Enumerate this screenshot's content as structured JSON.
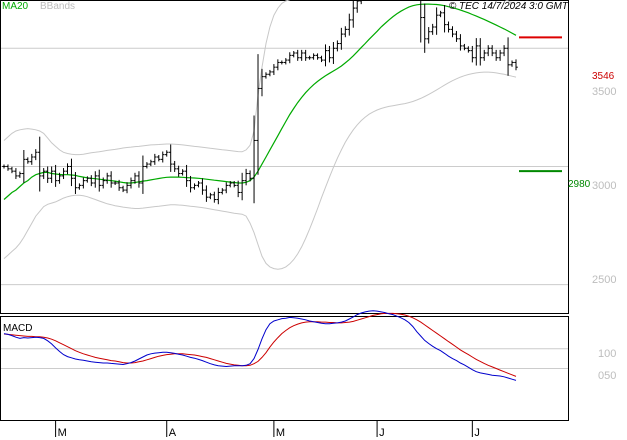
{
  "header": {
    "indicator_ma": "MA20",
    "indicator_bb": "BBands",
    "copyright_symbol": "©",
    "source": "TEC 14/7/2024 3:0 GMT"
  },
  "colors": {
    "price": "#000000",
    "ma20": "#00aa00",
    "bbands": "#c8c8c8",
    "macd": "#0000cc",
    "signal": "#cc0000",
    "resistance": "#dd0000",
    "support": "#008800",
    "grid": "#cccccc",
    "axis_text": "#bdbdbd"
  },
  "main_panel": {
    "y_axis_ticks": [
      "3500",
      "3000",
      "2500"
    ],
    "resistance_label": "3546",
    "support_label": "2980"
  },
  "macd_panel": {
    "title": "MACD",
    "y_axis_ticks": [
      "100",
      "050"
    ]
  },
  "x_axis": {
    "labels": [
      "M",
      "A",
      "M",
      "J",
      "J"
    ]
  },
  "chart_data": {
    "type": "line",
    "price_ylim": [
      2380,
      3700
    ],
    "macd_ylim": [
      -80,
      180
    ],
    "yticks": [
      3500,
      3000,
      2500
    ],
    "macd_yticks": [
      100,
      50
    ],
    "resistance": 3546,
    "support": 2980,
    "month_ticks": [
      {
        "label": "M",
        "index": 13
      },
      {
        "label": "A",
        "index": 41
      },
      {
        "label": "M",
        "index": 68
      },
      {
        "label": "J",
        "index": 94
      },
      {
        "label": "J",
        "index": 118
      }
    ],
    "close": [
      3000,
      2990,
      2980,
      2960,
      2970,
      3030,
      3020,
      3040,
      3060,
      2960,
      2980,
      2950,
      2980,
      2940,
      2960,
      2980,
      3000,
      2950,
      2910,
      2920,
      2940,
      2950,
      2930,
      2960,
      2920,
      2940,
      2960,
      2930,
      2930,
      2910,
      2900,
      2920,
      2940,
      2960,
      2930,
      3000,
      3010,
      3020,
      3040,
      3030,
      3050,
      3060,
      3010,
      2990,
      2970,
      2980,
      2940,
      2910,
      2920,
      2930,
      2900,
      2870,
      2880,
      2860,
      2890,
      2900,
      2920,
      2930,
      2920,
      2890,
      2940,
      2970,
      2950,
      3110,
      3330,
      3380,
      3390,
      3400,
      3420,
      3440,
      3440,
      3450,
      3470,
      3480,
      3460,
      3480,
      3460,
      3460,
      3470,
      3460,
      3450,
      3490,
      3460,
      3500,
      3520,
      3560,
      3580,
      3620,
      3670,
      3700,
      3720,
      3740,
      3740,
      3770,
      3790,
      3840,
      3820,
      3840,
      3850,
      3860,
      3870,
      3840,
      3830,
      3840,
      3790,
      3630,
      3540,
      3570,
      3590,
      3640,
      3650,
      3600,
      3580,
      3560,
      3540,
      3510,
      3500,
      3490,
      3460,
      3510,
      3460,
      3480,
      3500,
      3480,
      3460,
      3480,
      3500,
      3430,
      3440,
      3420
    ],
    "ma20": [
      2860,
      2875,
      2890,
      2900,
      2915,
      2930,
      2940,
      2955,
      2965,
      2970,
      2975,
      2975,
      2970,
      2968,
      2966,
      2965,
      2965,
      2964,
      2962,
      2958,
      2955,
      2952,
      2950,
      2948,
      2946,
      2944,
      2942,
      2940,
      2938,
      2935,
      2932,
      2930,
      2930,
      2932,
      2935,
      2938,
      2940,
      2943,
      2946,
      2949,
      2952,
      2954,
      2955,
      2955,
      2955,
      2954,
      2953,
      2952,
      2951,
      2950,
      2948,
      2946,
      2944,
      2942,
      2940,
      2938,
      2936,
      2934,
      2932,
      2930,
      2930,
      2933,
      2940,
      2955,
      2980,
      3010,
      3040,
      3070,
      3100,
      3130,
      3160,
      3190,
      3220,
      3245,
      3270,
      3292,
      3312,
      3330,
      3346,
      3360,
      3372,
      3384,
      3394,
      3404,
      3414,
      3425,
      3438,
      3452,
      3468,
      3485,
      3503,
      3520,
      3538,
      3555,
      3572,
      3590,
      3605,
      3620,
      3634,
      3646,
      3657,
      3666,
      3674,
      3680,
      3684,
      3686,
      3687,
      3687,
      3686,
      3685,
      3683,
      3680,
      3676,
      3672,
      3667,
      3662,
      3656,
      3650,
      3643,
      3636,
      3629,
      3622,
      3614,
      3606,
      3598,
      3590,
      3582,
      3573,
      3564,
      3555
    ],
    "bb_upper": [
      3110,
      3125,
      3140,
      3150,
      3155,
      3158,
      3160,
      3158,
      3155,
      3150,
      3140,
      3120,
      3100,
      3085,
      3070,
      3060,
      3055,
      3052,
      3050,
      3050,
      3052,
      3055,
      3058,
      3060,
      3062,
      3065,
      3068,
      3070,
      3072,
      3075,
      3078,
      3080,
      3082,
      3084,
      3085,
      3087,
      3089,
      3091,
      3092,
      3093,
      3094,
      3095,
      3095,
      3094,
      3093,
      3091,
      3089,
      3087,
      3085,
      3083,
      3081,
      3079,
      3077,
      3075,
      3073,
      3071,
      3069,
      3067,
      3065,
      3063,
      3062,
      3070,
      3090,
      3150,
      3300,
      3420,
      3520,
      3590,
      3640,
      3670,
      3690,
      3700,
      3706,
      3710,
      3713,
      3715,
      3716,
      3717,
      3718,
      3719,
      3720,
      3722,
      3726,
      3733,
      3745,
      3762,
      3782,
      3805,
      3830,
      3858,
      3888,
      3918,
      3945,
      3968,
      3985,
      3997,
      4003,
      4006,
      4007,
      4007,
      4006,
      4003,
      3999,
      3994,
      3988,
      3980,
      3970,
      3958,
      3944,
      3928,
      3910,
      3890,
      3868,
      3845,
      3820,
      3795,
      3775,
      3760,
      3750,
      3743,
      3738,
      3734,
      3730,
      3725,
      3720,
      3714,
      3708,
      3700,
      3692,
      3684
    ],
    "bb_lower": [
      2610,
      2625,
      2640,
      2655,
      2675,
      2700,
      2730,
      2760,
      2790,
      2810,
      2830,
      2840,
      2845,
      2850,
      2858,
      2866,
      2872,
      2876,
      2878,
      2878,
      2876,
      2872,
      2866,
      2860,
      2854,
      2848,
      2842,
      2838,
      2834,
      2831,
      2828,
      2826,
      2824,
      2822,
      2822,
      2824,
      2826,
      2828,
      2830,
      2832,
      2834,
      2836,
      2838,
      2838,
      2837,
      2836,
      2834,
      2832,
      2830,
      2828,
      2826,
      2823,
      2820,
      2817,
      2814,
      2811,
      2808,
      2805,
      2802,
      2800,
      2798,
      2790,
      2760,
      2720,
      2670,
      2620,
      2590,
      2575,
      2568,
      2565,
      2568,
      2575,
      2588,
      2606,
      2630,
      2660,
      2695,
      2735,
      2778,
      2822,
      2868,
      2912,
      2955,
      2996,
      3035,
      3070,
      3102,
      3130,
      3155,
      3176,
      3194,
      3209,
      3221,
      3231,
      3239,
      3245,
      3250,
      3254,
      3257,
      3260,
      3263,
      3266,
      3270,
      3275,
      3281,
      3288,
      3296,
      3305,
      3314,
      3324,
      3334,
      3344,
      3354,
      3363,
      3371,
      3378,
      3384,
      3389,
      3393,
      3396,
      3398,
      3399,
      3399,
      3398,
      3396,
      3393,
      3390,
      3386,
      3382,
      3378
    ],
    "macd": [
      138,
      136,
      133,
      129,
      126,
      128,
      127,
      128,
      129,
      128,
      126,
      120,
      112,
      102,
      93,
      85,
      80,
      77,
      74,
      72,
      71,
      69,
      67,
      66,
      65,
      64,
      64,
      63,
      62,
      61,
      60,
      62,
      65,
      69,
      74,
      79,
      84,
      87,
      89,
      90,
      91,
      91,
      90,
      88,
      86,
      84,
      81,
      78,
      76,
      73,
      70,
      66,
      62,
      59,
      57,
      56,
      55,
      56,
      57,
      57,
      57,
      58,
      62,
      75,
      98,
      125,
      148,
      163,
      170,
      173,
      176,
      177,
      179,
      178,
      177,
      175,
      173,
      170,
      168,
      166,
      164,
      163,
      163,
      164,
      165,
      167,
      170,
      175,
      180,
      186,
      190,
      193,
      195,
      196,
      195,
      193,
      191,
      188,
      186,
      182,
      178,
      173,
      166,
      156,
      143,
      132,
      121,
      113,
      106,
      100,
      95,
      88,
      81,
      75,
      70,
      64,
      59,
      53,
      47,
      42,
      39,
      37,
      35,
      33,
      32,
      31,
      29,
      26,
      23,
      20
    ],
    "signal": [
      137,
      136,
      135,
      134,
      133,
      132,
      131,
      131,
      130,
      130,
      129,
      127,
      124,
      120,
      115,
      110,
      105,
      100,
      95,
      91,
      87,
      84,
      81,
      78,
      76,
      74,
      72,
      70,
      69,
      67,
      65,
      64,
      64,
      65,
      67,
      69,
      72,
      75,
      78,
      81,
      83,
      85,
      86,
      87,
      87,
      87,
      86,
      85,
      84,
      82,
      80,
      78,
      75,
      72,
      69,
      66,
      63,
      61,
      59,
      58,
      57,
      57,
      58,
      62,
      68,
      78,
      90,
      104,
      117,
      128,
      138,
      146,
      153,
      158,
      162,
      165,
      167,
      168,
      168,
      168,
      167,
      167,
      166,
      166,
      165,
      165,
      166,
      167,
      169,
      172,
      175,
      178,
      181,
      184,
      186,
      188,
      189,
      189,
      189,
      188,
      187,
      185,
      182,
      178,
      173,
      167,
      160,
      153,
      146,
      139,
      132,
      125,
      118,
      111,
      104,
      97,
      91,
      85,
      79,
      73,
      68,
      63,
      58,
      54,
      50,
      46,
      42,
      38,
      34,
      30
    ]
  }
}
